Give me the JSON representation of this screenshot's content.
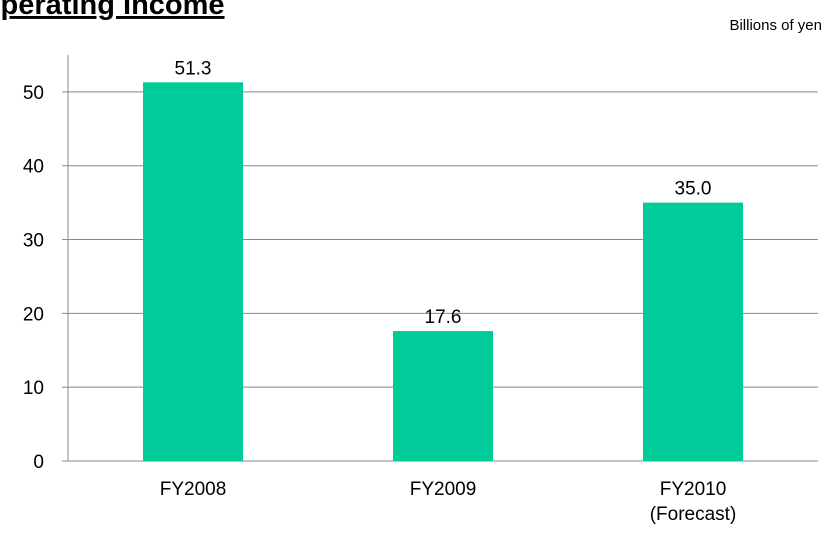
{
  "chart_data": {
    "type": "bar",
    "title": "Operating Income",
    "subtitle": "Billions of  yen",
    "categories": [
      "FY2008",
      "FY2009",
      "FY2010\n(Forecast)"
    ],
    "values": [
      51.3,
      17.6,
      35.0
    ],
    "value_labels": [
      "51.3",
      "17.6",
      "35.0"
    ],
    "color": "#00cc99",
    "ylim": [
      0,
      55
    ],
    "yticks": [
      0,
      10,
      20,
      30,
      40,
      50
    ],
    "grid": true
  }
}
